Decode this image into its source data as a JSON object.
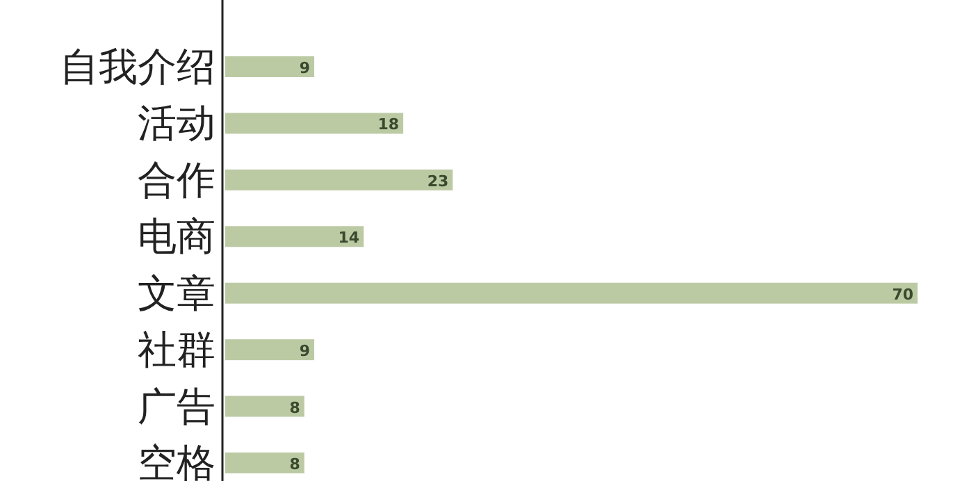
{
  "chart_data": {
    "type": "bar",
    "orientation": "horizontal",
    "categories": [
      "自我介绍",
      "活动",
      "合作",
      "电商",
      "文章",
      "社群",
      "广告",
      "空格"
    ],
    "values": [
      9,
      18,
      23,
      14,
      70,
      9,
      8,
      8
    ],
    "color": "#bccaa4",
    "data_labels": true
  }
}
